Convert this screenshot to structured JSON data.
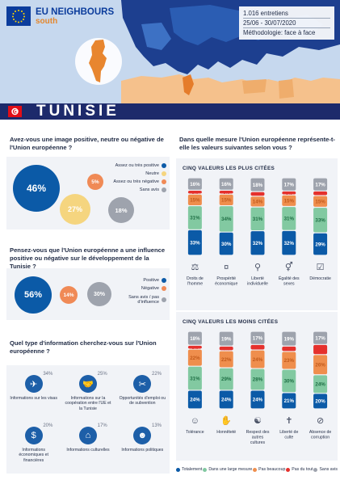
{
  "header": {
    "brand_line1": "EU NEIGHBOURS",
    "brand_line2": "south",
    "meta": [
      "1.016 entretiens",
      "25/06 - 30/07/2020",
      "Méthodologie: face à face"
    ]
  },
  "country": "TUNISIE",
  "colors": {
    "navy": "#1d2a6b",
    "blue": "#0b5aa7",
    "green": "#82c9a1",
    "orange": "#ef8e4d",
    "red": "#e5312d",
    "grey": "#9ea3ad",
    "yellow": "#f5d57f",
    "salmon": "#f08a56"
  },
  "q1": {
    "title": "Avez-vous une image positive, neutre ou négative de l'Union européenne ?",
    "bubbles": [
      {
        "label": "Assez ou très positive",
        "value": "46%",
        "color": "#0b5aa7"
      },
      {
        "label": "Neutre",
        "value": "27%",
        "color": "#f5d57f"
      },
      {
        "label": "Assez ou très négative",
        "value": "5%",
        "color": "#f08a56"
      },
      {
        "label": "Sans avis",
        "value": "18%",
        "color": "#9ea3ad"
      }
    ]
  },
  "q2": {
    "title": "Pensez-vous que l'Union européenne a une influence positive ou négative sur le développement de la Tunisie ?",
    "bubbles": [
      {
        "label": "Positive",
        "value": "56%",
        "color": "#0b5aa7"
      },
      {
        "label": "Négative",
        "value": "14%",
        "color": "#f08a56"
      },
      {
        "label": "Sans avis / pas d'influence",
        "value": "30%",
        "color": "#9ea3ad"
      }
    ]
  },
  "q3": {
    "title": "Quel type d'information cherchez-vous sur l'Union européenne ?",
    "items": [
      {
        "pct": "34%",
        "label": "Informations sur les visas",
        "icon": "airplane-icon",
        "glyph": "✈"
      },
      {
        "pct": "25%",
        "label": "Informations sur la coopération entre l'UE et la Tunisie",
        "icon": "handshake-icon",
        "glyph": "🤝"
      },
      {
        "pct": "22%",
        "label": "Opportunités d'emploi ou de subvention",
        "icon": "tools-icon",
        "glyph": "✂"
      },
      {
        "pct": "20%",
        "label": "Informations économiques et financières",
        "icon": "money-icon",
        "glyph": "$"
      },
      {
        "pct": "17%",
        "label": "Informations culturelles",
        "icon": "museum-icon",
        "glyph": "⌂"
      },
      {
        "pct": "13%",
        "label": "Informations politiques",
        "icon": "person-icon",
        "glyph": "☻"
      }
    ]
  },
  "values": {
    "title": "Dans quelle mesure l'Union européenne représente-t-elle les valeurs suivantes selon vous ?",
    "top_title": "CINQ VALEURS LES PLUS CITÉES",
    "bottom_title": "CINQ VALEURS LES MOINS CITÉES",
    "legend": [
      {
        "label": "Totalement",
        "color": "#0b5aa7"
      },
      {
        "label": "Dans une large mesure",
        "color": "#82c9a1"
      },
      {
        "label": "Pas beaucoup",
        "color": "#ef8e4d"
      },
      {
        "label": "Pas du tout",
        "color": "#e5312d"
      },
      {
        "label": "Sans avis",
        "color": "#9ea3ad"
      }
    ]
  },
  "chart_data": [
    {
      "type": "bar",
      "title": "CINQ VALEURS LES PLUS CITÉES",
      "categories": [
        "Droits de l'homme",
        "Prospérité économique",
        "Liberté individuelle",
        "Égalité des sexes",
        "Démocratie"
      ],
      "series": [
        {
          "name": "Totalement",
          "values": [
            33,
            30,
            32,
            32,
            29
          ]
        },
        {
          "name": "Dans une large mesure",
          "values": [
            31,
            34,
            31,
            31,
            33
          ]
        },
        {
          "name": "Pas beaucoup",
          "values": [
            15,
            15,
            14,
            15,
            15
          ]
        },
        {
          "name": "Pas du tout",
          "values": [
            5,
            5,
            6,
            5,
            6
          ]
        },
        {
          "name": "Sans avis",
          "values": [
            16,
            16,
            18,
            17,
            17
          ]
        }
      ],
      "labels": [
        [
          "33%",
          "31%",
          "15%",
          "5%",
          "16%"
        ],
        [
          "30%",
          "34%",
          "15%",
          "5%",
          "16%"
        ],
        [
          "32%",
          "31%",
          "14%",
          "6%",
          "18%"
        ],
        [
          "32%",
          "31%",
          "15%",
          "5%",
          "17%"
        ],
        [
          "29%",
          "33%",
          "15%",
          "6%",
          "17%"
        ]
      ],
      "icons": [
        "human-rights-icon",
        "prosperity-icon",
        "freedom-icon",
        "gender-equality-icon",
        "democracy-icon"
      ]
    },
    {
      "type": "bar",
      "title": "CINQ VALEURS LES MOINS CITÉES",
      "categories": [
        "Tolérance",
        "Honnêteté",
        "Respect des autres cultures",
        "Liberté de culte",
        "Absence de corruption"
      ],
      "series": [
        {
          "name": "Totalement",
          "values": [
            24,
            24,
            24,
            21,
            20
          ]
        },
        {
          "name": "Dans une large mesure",
          "values": [
            31,
            29,
            28,
            30,
            24
          ]
        },
        {
          "name": "Pas beaucoup",
          "values": [
            22,
            22,
            24,
            23,
            26
          ]
        },
        {
          "name": "Pas du tout",
          "values": [
            5,
            6,
            7,
            7,
            13
          ]
        },
        {
          "name": "Sans avis",
          "values": [
            18,
            19,
            17,
            19,
            17
          ]
        }
      ],
      "labels": [
        [
          "24%",
          "31%",
          "22%",
          "5%",
          "18%"
        ],
        [
          "24%",
          "29%",
          "22%",
          "6%",
          "19%"
        ],
        [
          "24%",
          "28%",
          "24%",
          "7%",
          "17%"
        ],
        [
          "21%",
          "30%",
          "23%",
          "7%",
          "19%"
        ],
        [
          "20%",
          "24%",
          "26%",
          "13%",
          "17%"
        ]
      ],
      "icons": [
        "tolerance-icon",
        "honesty-icon",
        "respect-icon",
        "religion-icon",
        "anti-corruption-icon"
      ]
    }
  ]
}
